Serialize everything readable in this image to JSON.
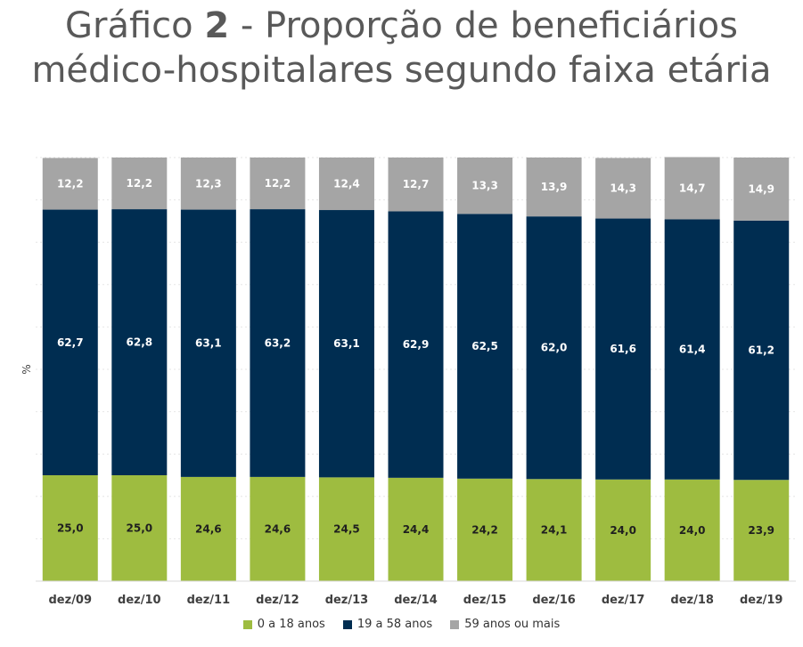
{
  "header": {
    "title_prefix": "Gráfico ",
    "title_number": "2",
    "title_line1_rest": " - Proporção de beneficiários",
    "title_line2": "médico-hospitalares segundo faixa etária"
  },
  "chart_data": {
    "type": "bar",
    "stacked": true,
    "title": "Gráfico 2 - Proporção de beneficiários médico-hospitalares segundo faixa etária",
    "ylabel": "%",
    "xlabel": "",
    "ylim": [
      0,
      100
    ],
    "categories": [
      "dez/09",
      "dez/10",
      "dez/11",
      "dez/12",
      "dez/13",
      "dez/14",
      "dez/15",
      "dez/16",
      "dez/17",
      "dez/18",
      "dez/19"
    ],
    "series": [
      {
        "name": "0 a 18 anos",
        "color": "#9ebc40",
        "values": [
          25.0,
          25.0,
          24.6,
          24.6,
          24.5,
          24.4,
          24.2,
          24.1,
          24.0,
          24.0,
          23.9
        ],
        "labels": [
          "25,0",
          "25,0",
          "24,6",
          "24,6",
          "24,5",
          "24,4",
          "24,2",
          "24,1",
          "24,0",
          "24,0",
          "23,9"
        ]
      },
      {
        "name": "19 a 58 anos",
        "color": "#002d51",
        "values": [
          62.7,
          62.8,
          63.1,
          63.2,
          63.1,
          62.9,
          62.5,
          62.0,
          61.6,
          61.4,
          61.2
        ],
        "labels": [
          "62,7",
          "62,8",
          "63,1",
          "63,2",
          "63,1",
          "62,9",
          "62,5",
          "62,0",
          "61,6",
          "61,4",
          "61,2"
        ]
      },
      {
        "name": "59 anos ou mais",
        "color": "#a5a5a5",
        "values": [
          12.2,
          12.2,
          12.3,
          12.2,
          12.4,
          12.7,
          13.3,
          13.9,
          14.3,
          14.7,
          14.9
        ],
        "labels": [
          "12,2",
          "12,2",
          "12,3",
          "12,2",
          "12,4",
          "12,7",
          "13,3",
          "13,9",
          "14,3",
          "14,7",
          "14,9"
        ]
      }
    ],
    "legend_position": "bottom",
    "grid": true
  }
}
